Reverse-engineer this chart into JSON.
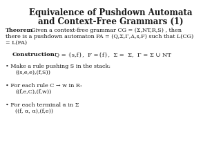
{
  "title_line1": "Equivalence of Pushdown Automata",
  "title_line2": "and Context-Free Grammars (1)",
  "background_color": "#ffffff",
  "text_color": "#1a1a1a",
  "title_fontsize": 8.5,
  "body_fontsize": 5.8,
  "construction_fontsize": 6.0,
  "theorem_label": "Theorem",
  "theorem_rest": ". Given a context-free grammar CG = (Σ,NT,R,S) , then",
  "theorem_line2": "there is a pushdown automaton PA = (Q,Σ,Γ,Δ,s,F) such that L(CG)",
  "theorem_line3": "= L(PA)",
  "construction_label": "Construction:",
  "construction_text": "  Q = {s,f},  F ={f},  Σ =  Σ,  Γ = Σ ∪ NT",
  "bullet1_main": " Make a rule pushing S in the stack:",
  "bullet1_sub": "((s,e,e),(f,S))",
  "bullet2_main": " For each rule C → w in R:",
  "bullet2_sub": "((f,e,C),(f,w))",
  "bullet3_main": " For each terminal α in Σ",
  "bullet3_sub": "((f, α, α),(f,e))"
}
